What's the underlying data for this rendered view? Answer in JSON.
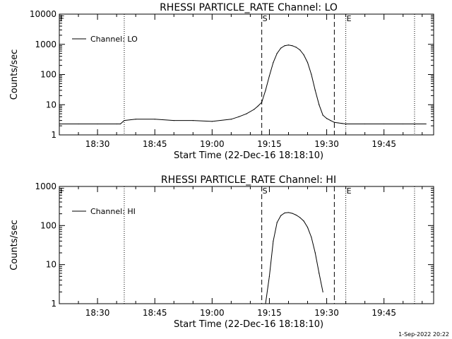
{
  "chart_data": [
    {
      "type": "line",
      "title": "RHESSI PARTICLE_RATE Channel: LO",
      "xlabel": "Start Time (22-Dec-16 18:18:10)",
      "ylabel": "Counts/sec",
      "yscale": "log",
      "ylim": [
        1,
        10000
      ],
      "xlim": [
        "18:20",
        "19:58"
      ],
      "x_ticks": [
        "18:30",
        "18:45",
        "19:00",
        "19:15",
        "19:30",
        "19:45"
      ],
      "y_ticks": [
        "1",
        "10",
        "100",
        "1000",
        "10000"
      ],
      "legend": "top-left",
      "series": [
        {
          "name": "Channel: LO",
          "x": [
            "18:20",
            "18:25",
            "18:30",
            "18:35",
            "18:36",
            "18:37",
            "18:40",
            "18:45",
            "18:50",
            "18:55",
            "19:00",
            "19:05",
            "19:07",
            "19:09",
            "19:11",
            "19:12",
            "19:13",
            "19:14",
            "19:15",
            "19:16",
            "19:17",
            "19:18",
            "19:19",
            "19:20",
            "19:21",
            "19:22",
            "19:23",
            "19:24",
            "19:25",
            "19:26",
            "19:27",
            "19:28",
            "19:29",
            "19:30",
            "19:31",
            "19:32",
            "19:33",
            "19:34",
            "19:35",
            "19:40",
            "19:45",
            "19:50",
            "19:56"
          ],
          "y": [
            2.3,
            2.3,
            2.3,
            2.3,
            2.3,
            3.0,
            3.3,
            3.3,
            3.0,
            3.0,
            2.8,
            3.3,
            4.0,
            5.0,
            7.0,
            9.0,
            12,
            30,
            90,
            250,
            500,
            750,
            900,
            950,
            900,
            800,
            650,
            450,
            250,
            100,
            30,
            10,
            4.5,
            3.5,
            3.0,
            2.6,
            2.5,
            2.4,
            2.3,
            2.3,
            2.3,
            2.3,
            2.3
          ]
        }
      ],
      "markers": {
        "dotted_lines": [
          "18:37",
          "19:35",
          "19:53"
        ],
        "dashed_lines": [
          "19:13",
          "19:32"
        ],
        "labels": [
          "F",
          "S",
          "E"
        ]
      }
    },
    {
      "type": "line",
      "title": "RHESSI PARTICLE_RATE Channel: HI",
      "xlabel": "Start Time (22-Dec-16 18:18:10)",
      "ylabel": "Counts/sec",
      "yscale": "log",
      "ylim": [
        1,
        1000
      ],
      "xlim": [
        "18:20",
        "19:58"
      ],
      "x_ticks": [
        "18:30",
        "18:45",
        "19:00",
        "19:15",
        "19:30",
        "19:45"
      ],
      "y_ticks": [
        "1",
        "10",
        "100",
        "1000"
      ],
      "legend": "top-left",
      "series": [
        {
          "name": "Channel: HI",
          "x": [
            "19:14",
            "19:15",
            "19:16",
            "19:17",
            "19:18",
            "19:19",
            "19:20",
            "19:21",
            "19:22",
            "19:23",
            "19:24",
            "19:25",
            "19:26",
            "19:27",
            "19:28",
            "19:29"
          ],
          "y": [
            1.0,
            5.0,
            40,
            120,
            180,
            210,
            215,
            205,
            185,
            160,
            130,
            90,
            50,
            20,
            6.0,
            2.0
          ]
        }
      ],
      "markers": {
        "dotted_lines": [
          "18:37",
          "19:35",
          "19:53"
        ],
        "dashed_lines": [
          "19:13",
          "19:32"
        ],
        "labels": [
          "F",
          "S",
          "E"
        ]
      }
    }
  ],
  "footer": {
    "timestamp": "1-Sep-2022 20:22"
  }
}
